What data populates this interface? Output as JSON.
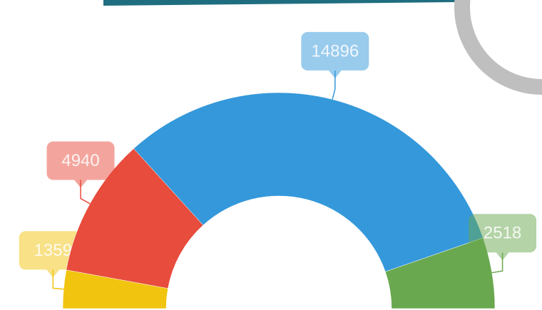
{
  "chart_data": {
    "type": "pie",
    "values": [
      1359,
      4940,
      14896,
      2518
    ],
    "colors": [
      "#f1c40f",
      "#e74c3c",
      "#3498db",
      "#69a84f"
    ]
  }
}
